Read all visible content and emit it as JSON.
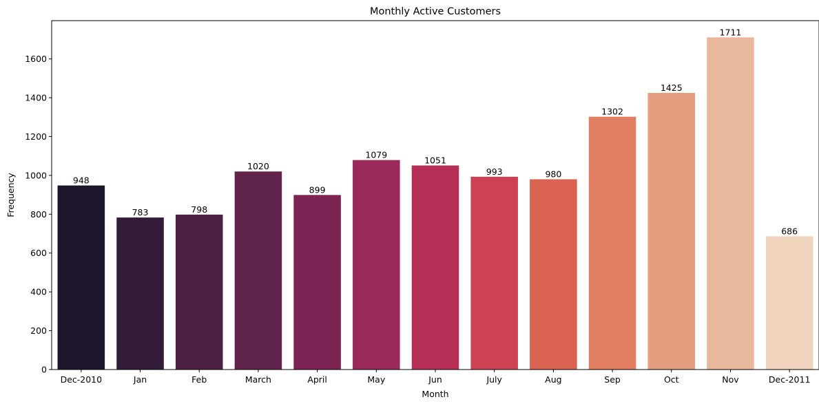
{
  "chart_data": {
    "type": "bar",
    "title": "Monthly Active Customers",
    "xlabel": "Month",
    "ylabel": "Frequency",
    "categories": [
      "Dec-2010",
      "Jan",
      "Feb",
      "March",
      "April",
      "May",
      "Jun",
      "July",
      "Aug",
      "Sep",
      "Oct",
      "Nov",
      "Dec-2011"
    ],
    "values": [
      948,
      783,
      798,
      1020,
      899,
      1079,
      1051,
      993,
      980,
      1302,
      1425,
      1711,
      686
    ],
    "data_labels": [
      "948",
      "783",
      "798",
      "1020",
      "899",
      "1079",
      "1051",
      "993",
      "980",
      "1302",
      "1425",
      "1711",
      "686"
    ],
    "ylim": [
      0,
      1797
    ],
    "yticks": [
      0,
      200,
      400,
      600,
      800,
      1000,
      1200,
      1400,
      1600
    ],
    "grid": false,
    "legend": "none",
    "colors": [
      "#1d162b",
      "#321c37",
      "#4b2043",
      "#61254d",
      "#7e2455",
      "#9a2a5a",
      "#b52f56",
      "#cc4252",
      "#da6352",
      "#e17e61",
      "#e49f7f",
      "#e9b79c",
      "#efd3bc"
    ]
  }
}
